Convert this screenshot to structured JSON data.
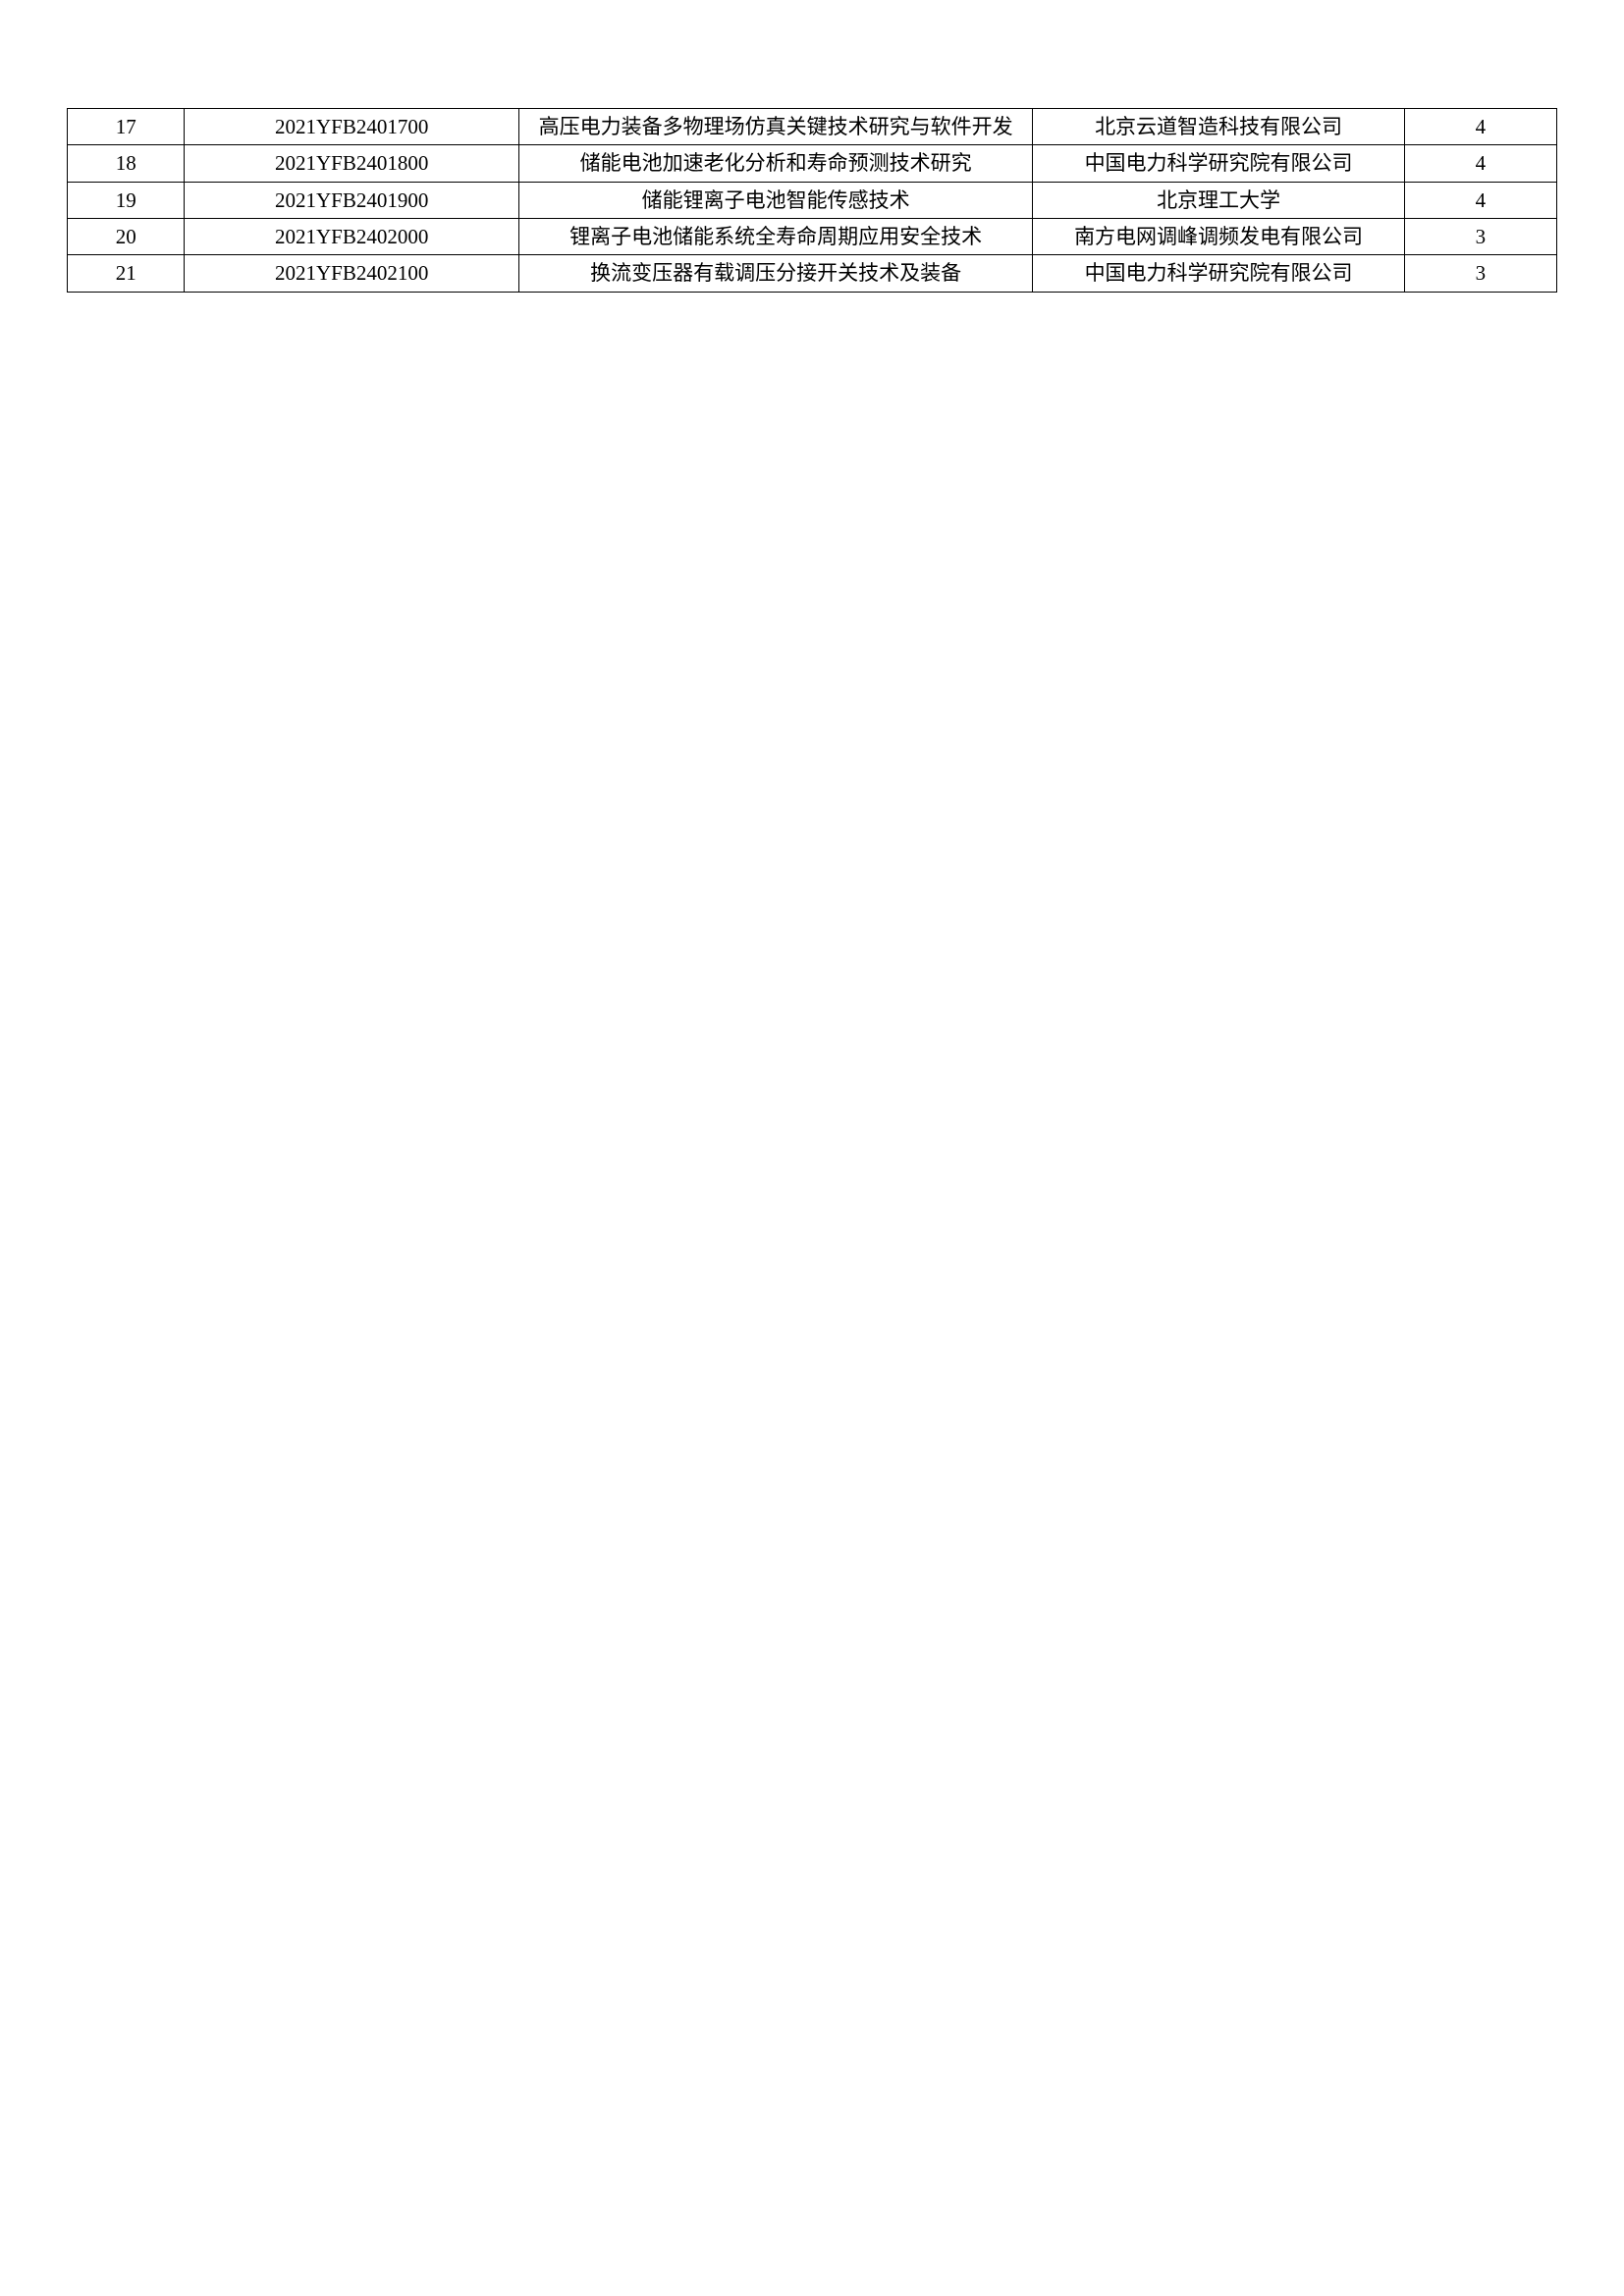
{
  "table": {
    "type": "table",
    "background_color": "#ffffff",
    "border_color": "#000000",
    "text_color": "#000000",
    "font_size_pt": 16,
    "font_family": "SimSun",
    "column_widths_ratio": [
      60,
      171,
      263,
      190,
      78
    ],
    "alignment": [
      "center",
      "center",
      "center",
      "center",
      "center"
    ],
    "rows": [
      {
        "index": "17",
        "code": "2021YFB2401700",
        "title": "高压电力装备多物理场仿真关键技术研究与软件开发",
        "org": "北京云道智造科技有限公司",
        "num": "4"
      },
      {
        "index": "18",
        "code": "2021YFB2401800",
        "title": "储能电池加速老化分析和寿命预测技术研究",
        "org": "中国电力科学研究院有限公司",
        "num": "4"
      },
      {
        "index": "19",
        "code": "2021YFB2401900",
        "title": "储能锂离子电池智能传感技术",
        "org": "北京理工大学",
        "num": "4"
      },
      {
        "index": "20",
        "code": "2021YFB2402000",
        "title": "锂离子电池储能系统全寿命周期应用安全技术",
        "org": "南方电网调峰调频发电有限公司",
        "num": "3"
      },
      {
        "index": "21",
        "code": "2021YFB2402100",
        "title": "换流变压器有载调压分接开关技术及装备",
        "org": "中国电力科学研究院有限公司",
        "num": "3"
      }
    ]
  }
}
